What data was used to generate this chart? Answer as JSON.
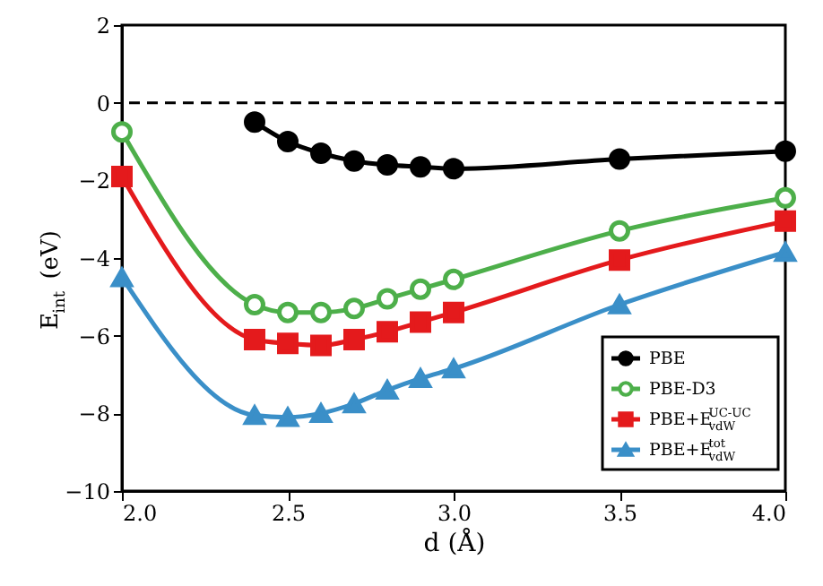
{
  "chart_data": {
    "type": "line",
    "xlabel": "d (Å)",
    "ylabel": "E$_{int}$ (eV)",
    "xlim": [
      2.0,
      4.0
    ],
    "xticks": [
      {
        "value": 2.0,
        "label": "2.0"
      },
      2.5,
      {
        "value": 3.0,
        "label": "3.0"
      },
      3.5,
      {
        "value": 4.0,
        "label": "4.0"
      }
    ],
    "ylim": [
      -10,
      2
    ],
    "yticks": [
      -10,
      -8,
      -6,
      -4,
      -2,
      0,
      2
    ],
    "grid": false,
    "legend": "bottom right",
    "line_style": "solid",
    "ref_lines": [
      {
        "axis": "y",
        "value": 0,
        "color": "#000000",
        "line_style": "dashed"
      }
    ],
    "series": [
      {
        "name": "PBE",
        "color": "#000000",
        "marker": "circle",
        "x": [
          2.4,
          2.5,
          2.6,
          2.7,
          2.8,
          2.9,
          3.0,
          3.5,
          4.0
        ],
        "values": [
          -0.5,
          -1.0,
          -1.3,
          -1.5,
          -1.6,
          -1.65,
          -1.7,
          -1.45,
          -1.25
        ]
      },
      {
        "name": "PBE-D3",
        "color": "#4daf4a",
        "marker": "open circle",
        "x": [
          2.0,
          2.4,
          2.5,
          2.6,
          2.7,
          2.8,
          2.9,
          3.0,
          3.5,
          4.0
        ],
        "values": [
          -0.75,
          -5.2,
          -5.4,
          -5.4,
          -5.3,
          -5.05,
          -4.8,
          -4.55,
          -3.3,
          -2.45
        ]
      },
      {
        "name": "PBE+E$_{vdW}$$^{UC-UC}$",
        "color": "#e41a1c",
        "marker": "square",
        "x": [
          2.0,
          2.4,
          2.5,
          2.6,
          2.7,
          2.8,
          2.9,
          3.0,
          3.5,
          4.0
        ],
        "values": [
          -1.9,
          -6.1,
          -6.2,
          -6.25,
          -6.1,
          -5.9,
          -5.65,
          -5.4,
          -4.05,
          -3.05
        ]
      },
      {
        "name": "PBE+E$_{vdW}$$^{tot}$",
        "color": "#3a8fc8",
        "marker": "triangle",
        "x": [
          2.0,
          2.4,
          2.5,
          2.6,
          2.7,
          2.8,
          2.9,
          3.0,
          3.5,
          4.0
        ],
        "values": [
          -4.5,
          -8.05,
          -8.1,
          -8.0,
          -7.75,
          -7.4,
          -7.1,
          -6.85,
          -5.2,
          -3.85
        ]
      }
    ]
  }
}
